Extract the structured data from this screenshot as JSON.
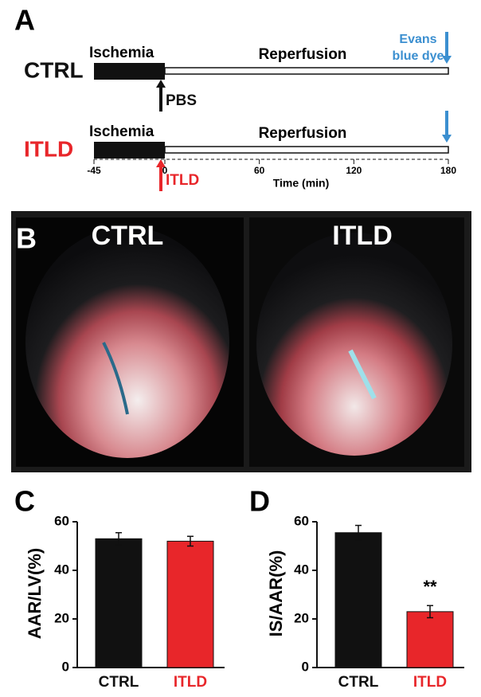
{
  "panel_a": {
    "label": "A",
    "rows": [
      {
        "group": "CTRL",
        "color": "#111111",
        "phase1": "Ischemia",
        "phase2": "Reperfusion",
        "treatment": "PBS"
      },
      {
        "group": "ITLD",
        "color": "#e8262a",
        "phase1": "Ischemia",
        "phase2": "Reperfusion",
        "treatment": "ITLD"
      }
    ],
    "stain": [
      "Evans",
      "blue dye"
    ],
    "stain_color": "#3b8fd0",
    "time_ticks": [
      -45,
      0,
      60,
      120,
      180
    ],
    "time_label": "Time (min)"
  },
  "panel_b": {
    "label": "B",
    "left": "CTRL",
    "right": "ITLD"
  },
  "chart_data": [
    {
      "type": "bar",
      "panel_label": "C",
      "ylabel": "AAR/LV(%)",
      "categories": [
        "CTRL",
        "ITLD"
      ],
      "values": [
        53,
        52
      ],
      "errors": [
        2.5,
        2
      ],
      "colors": [
        "#111111",
        "#e8262a"
      ],
      "label_colors": [
        "#111111",
        "#e8262a"
      ],
      "ylim": [
        0,
        60
      ],
      "yticks": [
        0,
        20,
        40,
        60
      ]
    },
    {
      "type": "bar",
      "panel_label": "D",
      "ylabel": "IS/AAR(%)",
      "categories": [
        "CTRL",
        "ITLD"
      ],
      "values": [
        55.5,
        23
      ],
      "errors": [
        3,
        2.5
      ],
      "colors": [
        "#111111",
        "#e8262a"
      ],
      "label_colors": [
        "#111111",
        "#e8262a"
      ],
      "ylim": [
        0,
        60
      ],
      "yticks": [
        0,
        20,
        40,
        60
      ],
      "annotation": "**"
    }
  ]
}
